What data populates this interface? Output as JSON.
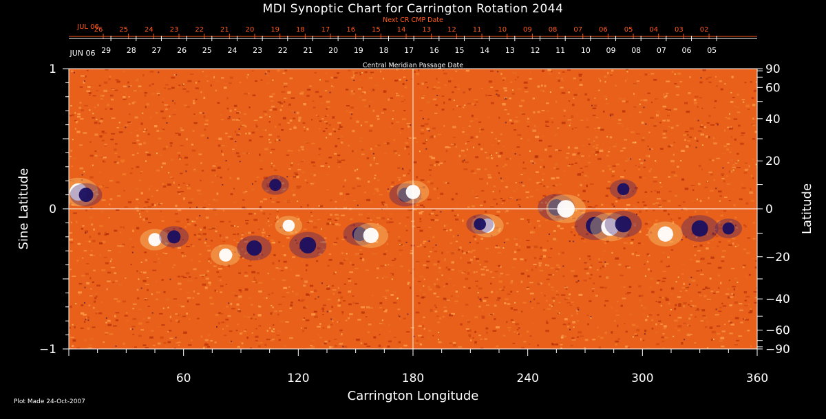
{
  "chart_data": {
    "type": "heatmap",
    "title": "MDI Synoptic Chart for Carrington Rotation 2044",
    "xlabel": "Carrington Longitude",
    "ylabel_left": "Sine Latitude",
    "ylabel_right": "Latitude",
    "xlim": [
      0,
      360
    ],
    "ylim": [
      -1,
      1
    ],
    "x_ticks": [
      "60",
      "120",
      "180",
      "240",
      "300",
      "360"
    ],
    "y_ticks_left": [
      "1",
      "0",
      "−1"
    ],
    "y_ticks_right": [
      "90",
      "60",
      "40",
      "20",
      "0",
      "−20",
      "−40",
      "−60",
      "−90"
    ],
    "top_axis_label": "Central Meridian Passage Date",
    "top_axis_start": "JUN 06",
    "top_axis_dates": [
      "29",
      "28",
      "27",
      "26",
      "25",
      "24",
      "23",
      "22",
      "21",
      "20",
      "19",
      "18",
      "17",
      "16",
      "15",
      "14",
      "13",
      "12",
      "11",
      "10",
      "09",
      "08",
      "07",
      "06",
      "05"
    ],
    "next_cr_label": "Next CR CMP Date",
    "next_cr_start": "JUL 06",
    "next_cr_dates": [
      "26",
      "25",
      "24",
      "23",
      "22",
      "21",
      "20",
      "19",
      "18",
      "17",
      "16",
      "15",
      "14",
      "13",
      "12",
      "11",
      "10",
      "09",
      "08",
      "07",
      "06",
      "05",
      "04",
      "03",
      "02"
    ],
    "colors": {
      "background": "#000000",
      "field_base": "#e8601a",
      "positive": "#ffffff",
      "negative": "#1a1060",
      "label_red": "#ff5a1e"
    },
    "grid": "meridian at 180 and equator",
    "active_regions": [
      {
        "lon": 5,
        "sinlat": 0.12,
        "polarity": "positive",
        "strength": 1.0
      },
      {
        "lon": 9,
        "sinlat": 0.1,
        "polarity": "negative",
        "strength": 0.7
      },
      {
        "lon": 45,
        "sinlat": -0.22,
        "polarity": "positive",
        "strength": 0.6
      },
      {
        "lon": 55,
        "sinlat": -0.2,
        "polarity": "negative",
        "strength": 0.6
      },
      {
        "lon": 82,
        "sinlat": -0.33,
        "polarity": "positive",
        "strength": 0.6
      },
      {
        "lon": 97,
        "sinlat": -0.28,
        "polarity": "negative",
        "strength": 0.8
      },
      {
        "lon": 108,
        "sinlat": 0.17,
        "polarity": "negative",
        "strength": 0.5
      },
      {
        "lon": 115,
        "sinlat": -0.12,
        "polarity": "positive",
        "strength": 0.5
      },
      {
        "lon": 125,
        "sinlat": -0.26,
        "polarity": "negative",
        "strength": 0.9
      },
      {
        "lon": 152,
        "sinlat": -0.18,
        "polarity": "negative",
        "strength": 0.7
      },
      {
        "lon": 158,
        "sinlat": -0.19,
        "polarity": "positive",
        "strength": 0.8
      },
      {
        "lon": 176,
        "sinlat": 0.1,
        "polarity": "negative",
        "strength": 0.7
      },
      {
        "lon": 180,
        "sinlat": 0.12,
        "polarity": "positive",
        "strength": 0.7
      },
      {
        "lon": 219,
        "sinlat": -0.12,
        "polarity": "positive",
        "strength": 0.7
      },
      {
        "lon": 215,
        "sinlat": -0.11,
        "polarity": "negative",
        "strength": 0.5
      },
      {
        "lon": 255,
        "sinlat": 0.01,
        "polarity": "negative",
        "strength": 0.9
      },
      {
        "lon": 260,
        "sinlat": 0.0,
        "polarity": "positive",
        "strength": 1.0
      },
      {
        "lon": 275,
        "sinlat": -0.12,
        "polarity": "negative",
        "strength": 1.0
      },
      {
        "lon": 283,
        "sinlat": -0.13,
        "polarity": "positive",
        "strength": 1.0
      },
      {
        "lon": 290,
        "sinlat": -0.11,
        "polarity": "negative",
        "strength": 0.9
      },
      {
        "lon": 312,
        "sinlat": -0.18,
        "polarity": "positive",
        "strength": 0.8
      },
      {
        "lon": 330,
        "sinlat": -0.14,
        "polarity": "negative",
        "strength": 0.9
      },
      {
        "lon": 345,
        "sinlat": -0.14,
        "polarity": "negative",
        "strength": 0.5
      },
      {
        "lon": 290,
        "sinlat": 0.14,
        "polarity": "negative",
        "strength": 0.5
      }
    ]
  },
  "footer": "Plot Made 24-Oct-2007"
}
